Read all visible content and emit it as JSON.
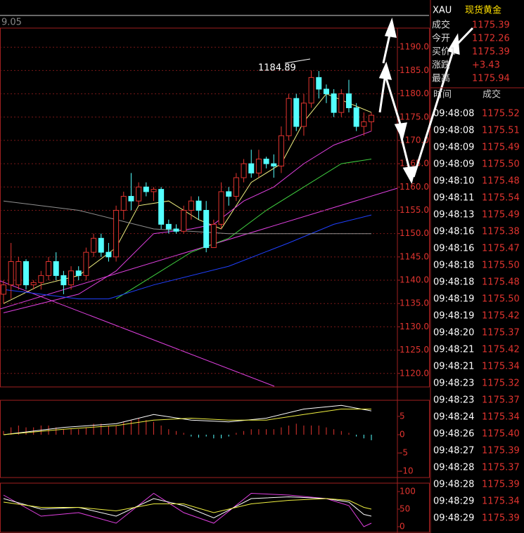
{
  "chart_data": {
    "type": "candlestick",
    "top_label": "9.05",
    "annotation": "1184.89",
    "annotation_index": 43,
    "open": [
      1137,
      1139,
      1139,
      1144,
      1139,
      1139.5,
      1141,
      1144,
      1141,
      1139,
      1142,
      1141,
      1146,
      1149,
      1146,
      1145,
      1155,
      1158,
      1157,
      1160,
      1159,
      1159.5,
      1152,
      1151,
      1150.5,
      1155,
      1157,
      1155,
      1147,
      1152,
      1159,
      1158,
      1162,
      1165,
      1163,
      1166,
      1165,
      1164.5,
      1171,
      1179,
      1173,
      1178,
      1183.5,
      1181,
      1180,
      1176,
      1180,
      1177,
      1173,
      1174
    ],
    "high": [
      1140,
      1148,
      1145,
      1144.5,
      1140,
      1142,
      1145,
      1146,
      1142,
      1143,
      1143,
      1147,
      1150,
      1150,
      1148,
      1156,
      1159,
      1163,
      1161,
      1161,
      1160,
      1160,
      1153,
      1152,
      1156,
      1158,
      1158,
      1157,
      1153,
      1161,
      1160,
      1163,
      1166,
      1168,
      1168,
      1166.5,
      1167,
      1173,
      1180,
      1180,
      1180,
      1185,
      1184.89,
      1182,
      1181,
      1181,
      1183,
      1178,
      1176,
      1176
    ],
    "low": [
      1135,
      1136,
      1138,
      1138,
      1138,
      1138,
      1140,
      1140,
      1137,
      1138,
      1140,
      1140,
      1145,
      1145,
      1144,
      1144,
      1153,
      1155,
      1156,
      1158,
      1157,
      1151,
      1150,
      1150,
      1150,
      1153,
      1153,
      1146,
      1147,
      1151,
      1156,
      1157,
      1161,
      1162,
      1162,
      1164,
      1162,
      1163,
      1170,
      1172,
      1171,
      1177,
      1179,
      1178,
      1175,
      1175,
      1176,
      1172,
      1171,
      1172
    ],
    "close": [
      1139,
      1144,
      1144,
      1139,
      1139.5,
      1141,
      1144,
      1141,
      1139,
      1142,
      1141,
      1146,
      1149,
      1146,
      1145,
      1155,
      1158,
      1157,
      1160,
      1159,
      1159.5,
      1152,
      1151,
      1150.5,
      1155,
      1157,
      1155,
      1147,
      1152,
      1159,
      1158,
      1162,
      1165,
      1163,
      1166,
      1165,
      1164.5,
      1171,
      1179,
      1173,
      1178,
      1183.5,
      1181,
      1180,
      1176,
      1180,
      1177,
      1173,
      1174,
      1175.4
    ],
    "up_color": "#e0342f",
    "down_color": "#54ffff",
    "ylim": [
      1117.1,
      1194.1
    ],
    "yticks": [
      {
        "value": 1120,
        "label": "1120.0"
      },
      {
        "value": 1125,
        "label": "1125.0"
      },
      {
        "value": 1130,
        "label": "1130.0"
      },
      {
        "value": 1135,
        "label": "1135.0"
      },
      {
        "value": 1140,
        "label": "1140.0"
      },
      {
        "value": 1145,
        "label": "1145.0"
      },
      {
        "value": 1150,
        "label": "1150.0"
      },
      {
        "value": 1155,
        "label": "1155.0"
      },
      {
        "value": 1160,
        "label": "1160.0"
      },
      {
        "value": 1165,
        "label": "1165.0"
      },
      {
        "value": 1170,
        "label": "1170.0"
      },
      {
        "value": 1175,
        "label": "1175.0"
      },
      {
        "value": 1180,
        "label": "1180.0"
      },
      {
        "value": 1185,
        "label": "1185.0"
      },
      {
        "value": 1190,
        "label": "1190.0"
      }
    ],
    "grid": true,
    "lines": [
      {
        "color": "#f0f080",
        "x": [
          0,
          5,
          10,
          15,
          18,
          22,
          26,
          29,
          33,
          37,
          40,
          43,
          46,
          49
        ],
        "values": [
          1135,
          1139,
          1141,
          1147,
          1156,
          1157,
          1153,
          1151,
          1161,
          1165,
          1174,
          1180,
          1178,
          1176
        ]
      },
      {
        "color": "#e040e0",
        "x": [
          0,
          10,
          15,
          20,
          25,
          28,
          32,
          36,
          40,
          44,
          49
        ],
        "values": [
          1133,
          1137,
          1142,
          1150,
          1151,
          1152,
          1157,
          1160,
          1165,
          1169,
          1172
        ]
      },
      {
        "color": "#40d040",
        "x": [
          15,
          20,
          25,
          30,
          35,
          40,
          45,
          49
        ],
        "values": [
          1136,
          1141,
          1146,
          1149,
          1155,
          1160,
          1165,
          1166
        ]
      },
      {
        "color": "#2040ff",
        "x": [
          0,
          10,
          14,
          20,
          30,
          38,
          44,
          49
        ],
        "values": [
          1138,
          1136,
          1136,
          1139,
          1143,
          1148,
          1152,
          1154
        ]
      },
      {
        "color": "#909090",
        "x": [
          0,
          10,
          20,
          30,
          40,
          49
        ],
        "values": [
          1157,
          1155,
          1151,
          1150,
          1150,
          1150
        ]
      }
    ],
    "macd": {
      "ylim": [
        -11.7,
        9.4
      ],
      "yticks": [
        5,
        0,
        -5,
        -10
      ],
      "histogram": [
        1,
        2,
        2.5,
        2,
        2,
        2.5,
        2.5,
        2,
        1.5,
        1.5,
        1.5,
        2,
        3,
        3,
        2.5,
        2.5,
        3.5,
        4,
        4.5,
        4,
        3.5,
        2.5,
        1.5,
        1,
        0.5,
        -0.5,
        -0.8,
        -0.5,
        -1,
        -1,
        -0.5,
        0.5,
        1,
        1.5,
        1.5,
        1.5,
        1.5,
        2,
        2.5,
        3,
        2.5,
        2.5,
        2.5,
        2,
        1.5,
        1,
        0.5,
        -0.5,
        -1,
        -1.5
      ],
      "lines": [
        {
          "color": "#ffffff",
          "x": [
            0,
            8,
            15,
            20,
            25,
            30,
            35,
            40,
            45,
            49
          ],
          "values": [
            0,
            2,
            3,
            5.5,
            4,
            3.5,
            4.5,
            7,
            8,
            6.5
          ]
        },
        {
          "color": "#f0f040",
          "x": [
            0,
            8,
            15,
            20,
            25,
            30,
            35,
            40,
            45,
            49
          ],
          "values": [
            0,
            1.5,
            2.5,
            4,
            4.5,
            4,
            4,
            5.5,
            7,
            7
          ]
        }
      ]
    },
    "kdj": {
      "ylim": [
        -14,
        124
      ],
      "yticks": [
        100,
        50,
        0
      ],
      "lines": [
        {
          "color": "#e040e0",
          "x": [
            0,
            5,
            10,
            15,
            20,
            24,
            28,
            33,
            38,
            43,
            46,
            48,
            49
          ],
          "values": [
            90,
            30,
            40,
            10,
            95,
            40,
            10,
            95,
            90,
            80,
            60,
            0,
            10
          ]
        },
        {
          "color": "#ffffff",
          "x": [
            0,
            5,
            10,
            15,
            20,
            24,
            28,
            33,
            38,
            43,
            46,
            48,
            49
          ],
          "values": [
            80,
            50,
            55,
            30,
            80,
            60,
            25,
            80,
            85,
            80,
            70,
            35,
            30
          ]
        },
        {
          "color": "#f0f040",
          "x": [
            0,
            5,
            10,
            15,
            20,
            24,
            28,
            33,
            38,
            43,
            46,
            48,
            49
          ],
          "values": [
            70,
            55,
            55,
            45,
            65,
            65,
            40,
            65,
            75,
            80,
            75,
            55,
            50
          ]
        }
      ]
    }
  },
  "quote": {
    "symbol": "XAU",
    "name": "现货黄金",
    "fields": [
      [
        "成交",
        "1175.39"
      ],
      [
        "今开",
        "1172.26"
      ],
      [
        "买价1",
        "1175.39"
      ],
      [
        "涨跌",
        "+3.43"
      ],
      [
        "最高",
        "1175.94"
      ]
    ],
    "header": [
      "时间",
      "成交"
    ],
    "rows": [
      [
        "09:48:08",
        "1175.52"
      ],
      [
        "09:48:08",
        "1175.51"
      ],
      [
        "09:48:09",
        "1175.49"
      ],
      [
        "09:48:09",
        "1175.50"
      ],
      [
        "09:48:10",
        "1175.48"
      ],
      [
        "09:48:11",
        "1175.54"
      ],
      [
        "09:48:13",
        "1175.49"
      ],
      [
        "09:48:16",
        "1175.38"
      ],
      [
        "09:48:16",
        "1175.47"
      ],
      [
        "09:48:18",
        "1175.50"
      ],
      [
        "09:48:18",
        "1175.48"
      ],
      [
        "09:48:19",
        "1175.50"
      ],
      [
        "09:48:19",
        "1175.42"
      ],
      [
        "09:48:20",
        "1175.37"
      ],
      [
        "09:48:21",
        "1175.42"
      ],
      [
        "09:48:21",
        "1175.34"
      ],
      [
        "09:48:23",
        "1175.32"
      ],
      [
        "09:48:23",
        "1175.37"
      ],
      [
        "09:48:24",
        "1175.34"
      ],
      [
        "09:48:26",
        "1175.40"
      ],
      [
        "09:48:27",
        "1175.39"
      ],
      [
        "09:48:28",
        "1175.37"
      ],
      [
        "09:48:28",
        "1175.39"
      ],
      [
        "09:48:29",
        "1175.34"
      ],
      [
        "09:48:29",
        "1175.39"
      ]
    ]
  }
}
